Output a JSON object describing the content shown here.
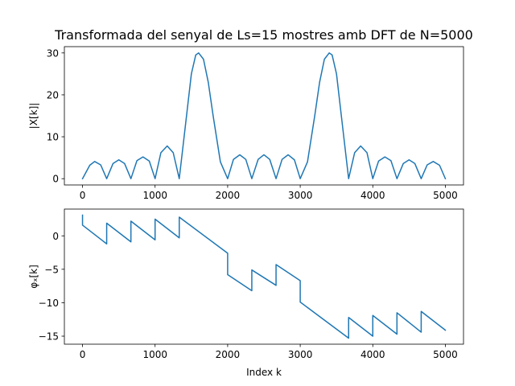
{
  "chart_data": [
    {
      "type": "line",
      "title": "Transformada del senyal de Ls=15 mostres amb DFT de N=5000",
      "xlabel": "",
      "ylabel": "|X[k]|",
      "xlim": [
        -250,
        5250
      ],
      "ylim": [
        -1.5,
        31.5
      ],
      "xticks": [
        0,
        1000,
        2000,
        3000,
        4000,
        5000
      ],
      "xtick_labels": [
        "0",
        "1000",
        "2000",
        "3000",
        "4000",
        "5000"
      ],
      "yticks": [
        0,
        10,
        20,
        30
      ],
      "ytick_labels": [
        "0",
        "10",
        "20",
        "30"
      ],
      "grid": false,
      "color": "#1f77b4",
      "series": [
        {
          "x": [
            0,
            100,
            167,
            250,
            333,
            420,
            500,
            580,
            667,
            750,
            833,
            920,
            1000,
            1080,
            1167,
            1250,
            1333,
            1400,
            1500,
            1560,
            1600,
            1667,
            1733,
            1800,
            1900,
            2000,
            2080,
            2167,
            2250,
            2333,
            2420,
            2500,
            2580,
            2667,
            2750,
            2833,
            2920,
            3000,
            3100,
            3200,
            3267,
            3333,
            3400,
            3440,
            3500,
            3600,
            3667,
            3750,
            3833,
            3920,
            4000,
            4080,
            4167,
            4250,
            4333,
            4420,
            4500,
            4580,
            4667,
            4750,
            4833,
            4920,
            5000
          ],
          "y": [
            0,
            3.2,
            4.1,
            3.3,
            0,
            3.6,
            4.5,
            3.6,
            0,
            4.3,
            5.2,
            4.2,
            0,
            6.2,
            7.8,
            6.2,
            0,
            10,
            25,
            29.5,
            30,
            28.5,
            23,
            15,
            4,
            0,
            4.6,
            5.7,
            4.6,
            0,
            4.6,
            5.7,
            4.6,
            0,
            4.6,
            5.7,
            4.5,
            0,
            4,
            15,
            23,
            28.5,
            30,
            29.5,
            25,
            10,
            0,
            6.2,
            7.8,
            6.2,
            0,
            4.2,
            5.2,
            4.3,
            0,
            3.6,
            4.5,
            3.6,
            0,
            3.3,
            4.1,
            3.2,
            0
          ]
        }
      ]
    },
    {
      "type": "line",
      "title": "",
      "xlabel": "Index k",
      "ylabel": "φₓ[k]",
      "xlim": [
        -250,
        5250
      ],
      "ylim": [
        -16.2,
        4.0
      ],
      "xticks": [
        0,
        1000,
        2000,
        3000,
        4000,
        5000
      ],
      "xtick_labels": [
        "0",
        "1000",
        "2000",
        "3000",
        "4000",
        "5000"
      ],
      "yticks": [
        0,
        -5,
        -10,
        -15
      ],
      "ytick_labels": [
        "0",
        "−5",
        "−10",
        "−15"
      ],
      "grid": false,
      "color": "#1f77b4",
      "series": [
        {
          "x": [
            0,
            0,
            333,
            333,
            667,
            667,
            1000,
            1000,
            1333,
            1333,
            2000,
            2000,
            2333,
            2333,
            2667,
            2667,
            3000,
            3000,
            3667,
            3667,
            4000,
            4000,
            4333,
            4333,
            4667,
            4667,
            5000
          ],
          "y": [
            3.1,
            1.6,
            -1.2,
            1.9,
            -0.9,
            2.2,
            -0.6,
            2.5,
            -0.3,
            2.8,
            -2.6,
            -5.8,
            -8.2,
            -5.1,
            -7.4,
            -4.3,
            -6.7,
            -9.9,
            -15.3,
            -12.2,
            -15.0,
            -11.9,
            -14.7,
            -11.5,
            -14.4,
            -11.3,
            -14.1
          ]
        }
      ]
    }
  ]
}
